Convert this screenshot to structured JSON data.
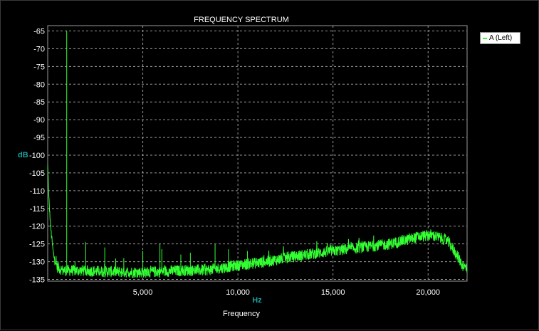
{
  "chart_data": {
    "type": "line",
    "title": "FREQUENCY SPECTRUM",
    "xlabel": "Frequency",
    "x_unit": "Hz",
    "y_unit": "dB",
    "xlim": [
      0,
      22050
    ],
    "ylim": [
      -135.5,
      -63.5
    ],
    "x_ticks": [
      5000,
      10000,
      15000,
      20000
    ],
    "x_tick_labels": [
      "5,000",
      "10,000",
      "15,000",
      "20,000"
    ],
    "y_ticks": [
      -65,
      -70,
      -75,
      -80,
      -85,
      -90,
      -95,
      -100,
      -105,
      -110,
      -115,
      -120,
      -125,
      -130,
      -135
    ],
    "grid": true,
    "legend_position": "top-right",
    "colors": {
      "background": "#000000",
      "series": "#33ff33",
      "grid": "#9a9a9a",
      "unit_label": "#1aa3a3"
    },
    "series": [
      {
        "name": "A (Left)",
        "baseline": [
          [
            0,
            -103
          ],
          [
            60,
            -112
          ],
          [
            150,
            -120
          ],
          [
            300,
            -128
          ],
          [
            500,
            -131.5
          ],
          [
            800,
            -132.5
          ],
          [
            1500,
            -132.5
          ],
          [
            3000,
            -132.8
          ],
          [
            5000,
            -133
          ],
          [
            7000,
            -132.5
          ],
          [
            8500,
            -132.3
          ],
          [
            10000,
            -131
          ],
          [
            11500,
            -130
          ],
          [
            13000,
            -128.5
          ],
          [
            15000,
            -127
          ],
          [
            16500,
            -126
          ],
          [
            18000,
            -125
          ],
          [
            19500,
            -123
          ],
          [
            20200,
            -122.5
          ],
          [
            21000,
            -124
          ],
          [
            21500,
            -128
          ],
          [
            21800,
            -131
          ],
          [
            22050,
            -132
          ]
        ],
        "peaks": [
          [
            1000,
            -65
          ],
          [
            2000,
            -124.5
          ],
          [
            3000,
            -126
          ],
          [
            4000,
            -129
          ],
          [
            5000,
            -127
          ],
          [
            5900,
            -125
          ],
          [
            6000,
            -126.5
          ],
          [
            7000,
            -128
          ],
          [
            7500,
            -127.5
          ],
          [
            8800,
            -125
          ],
          [
            9500,
            -126.5
          ],
          [
            10500,
            -127
          ]
        ]
      }
    ]
  }
}
